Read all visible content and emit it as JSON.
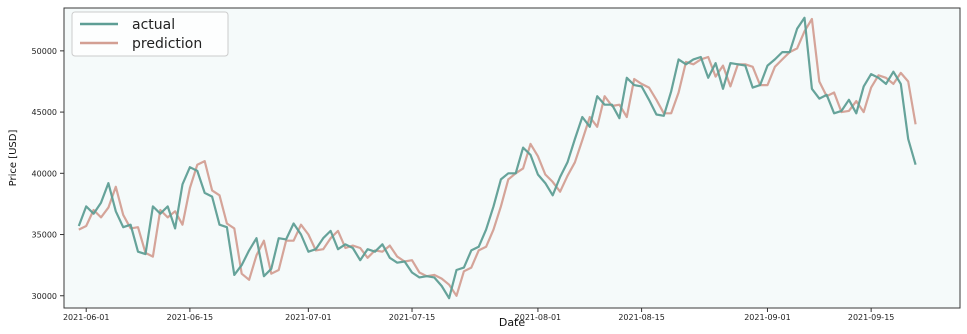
{
  "chart_data": {
    "type": "line",
    "title": "",
    "xlabel": "Date",
    "ylabel": "Price [USD]",
    "xlim": [
      "2021-05-29",
      "2021-09-27"
    ],
    "ylim": [
      29000,
      53500
    ],
    "x_ticks": [
      "2021-06-01",
      "2021-06-15",
      "2021-07-01",
      "2021-07-15",
      "2021-08-01",
      "2021-08-15",
      "2021-09-01",
      "2021-09-15"
    ],
    "y_ticks": [
      30000,
      35000,
      40000,
      45000,
      50000
    ],
    "grid": false,
    "legend_position": "top-left",
    "x": [
      "2021-05-31",
      "2021-06-01",
      "2021-06-02",
      "2021-06-03",
      "2021-06-04",
      "2021-06-05",
      "2021-06-06",
      "2021-06-07",
      "2021-06-08",
      "2021-06-09",
      "2021-06-10",
      "2021-06-11",
      "2021-06-12",
      "2021-06-13",
      "2021-06-14",
      "2021-06-15",
      "2021-06-16",
      "2021-06-17",
      "2021-06-18",
      "2021-06-19",
      "2021-06-20",
      "2021-06-21",
      "2021-06-22",
      "2021-06-23",
      "2021-06-24",
      "2021-06-25",
      "2021-06-26",
      "2021-06-27",
      "2021-06-28",
      "2021-06-29",
      "2021-06-30",
      "2021-07-01",
      "2021-07-02",
      "2021-07-03",
      "2021-07-04",
      "2021-07-05",
      "2021-07-06",
      "2021-07-07",
      "2021-07-08",
      "2021-07-09",
      "2021-07-10",
      "2021-07-11",
      "2021-07-12",
      "2021-07-13",
      "2021-07-14",
      "2021-07-15",
      "2021-07-16",
      "2021-07-17",
      "2021-07-18",
      "2021-07-19",
      "2021-07-20",
      "2021-07-21",
      "2021-07-22",
      "2021-07-23",
      "2021-07-24",
      "2021-07-25",
      "2021-07-26",
      "2021-07-27",
      "2021-07-28",
      "2021-07-29",
      "2021-07-30",
      "2021-07-31",
      "2021-08-01",
      "2021-08-02",
      "2021-08-03",
      "2021-08-04",
      "2021-08-05",
      "2021-08-06",
      "2021-08-07",
      "2021-08-08",
      "2021-08-09",
      "2021-08-10",
      "2021-08-11",
      "2021-08-12",
      "2021-08-13",
      "2021-08-14",
      "2021-08-15",
      "2021-08-16",
      "2021-08-17",
      "2021-08-18",
      "2021-08-19",
      "2021-08-20",
      "2021-08-21",
      "2021-08-22",
      "2021-08-23",
      "2021-08-24",
      "2021-08-25",
      "2021-08-26",
      "2021-08-27",
      "2021-08-28",
      "2021-08-29",
      "2021-08-30",
      "2021-08-31",
      "2021-09-01",
      "2021-09-02",
      "2021-09-03",
      "2021-09-04",
      "2021-09-05",
      "2021-09-06",
      "2021-09-07",
      "2021-09-08",
      "2021-09-09",
      "2021-09-10",
      "2021-09-11",
      "2021-09-12",
      "2021-09-13",
      "2021-09-14",
      "2021-09-15",
      "2021-09-16",
      "2021-09-17",
      "2021-09-18",
      "2021-09-19",
      "2021-09-20",
      "2021-09-21"
    ],
    "series": [
      {
        "name": "actual",
        "color": "#5e9e95",
        "values": [
          35700,
          37300,
          36700,
          37600,
          39200,
          36900,
          35600,
          35800,
          33600,
          33400,
          37300,
          36700,
          37300,
          35500,
          39100,
          40500,
          40200,
          38400,
          38100,
          35800,
          35600,
          31700,
          32500,
          33700,
          34700,
          31600,
          32200,
          34700,
          34600,
          35900,
          35000,
          33600,
          33800,
          34700,
          35300,
          33800,
          34200,
          33900,
          32900,
          33800,
          33600,
          34200,
          33100,
          32700,
          32800,
          31900,
          31500,
          31600,
          31500,
          30800,
          29800,
          32100,
          32300,
          33700,
          34000,
          35400,
          37300,
          39500,
          40000,
          40000,
          42100,
          41500,
          39900,
          39200,
          38200,
          39700,
          40900,
          42800,
          44600,
          43800,
          46300,
          45600,
          45600,
          44500,
          47800,
          47200,
          47100,
          46000,
          44800,
          44700,
          46700,
          49300,
          48900,
          49300,
          49500,
          47800,
          49000,
          46900,
          49000,
          48900,
          48800,
          47000,
          47200,
          48800,
          49300,
          49900,
          49900,
          51800,
          52700,
          46900,
          46100,
          46400,
          44900,
          45100,
          46000,
          44900,
          47100,
          48100,
          47800,
          47300,
          48300,
          47300,
          42800,
          40700
        ]
      },
      {
        "name": "prediction",
        "color": "#d39f93",
        "values": [
          35400,
          35700,
          37000,
          36400,
          37200,
          38900,
          36600,
          35500,
          35600,
          33500,
          33200,
          37000,
          36400,
          36900,
          35800,
          38800,
          40700,
          41000,
          38600,
          38200,
          35900,
          35500,
          31800,
          31300,
          33300,
          34500,
          31800,
          32100,
          34500,
          34500,
          35800,
          35000,
          33700,
          33800,
          34700,
          35300,
          33900,
          34100,
          33900,
          33100,
          33700,
          33600,
          34100,
          33200,
          32800,
          32900,
          31900,
          31600,
          31700,
          31400,
          30900,
          30000,
          32000,
          32300,
          33700,
          34000,
          35400,
          37300,
          39500,
          40000,
          40400,
          42400,
          41400,
          39900,
          39300,
          38500,
          39800,
          40900,
          42700,
          44600,
          43800,
          46300,
          45500,
          45600,
          44600,
          47700,
          47300,
          47000,
          46000,
          44900,
          44900,
          46600,
          49100,
          48900,
          49300,
          49500,
          47900,
          48800,
          47100,
          48900,
          48900,
          48700,
          47200,
          47200,
          48700,
          49300,
          49900,
          50200,
          51600,
          52600,
          47500,
          46300,
          46600,
          45000,
          45100,
          45900,
          45000,
          47000,
          48000,
          47800,
          47300,
          48200,
          47500,
          44000
        ]
      }
    ]
  }
}
